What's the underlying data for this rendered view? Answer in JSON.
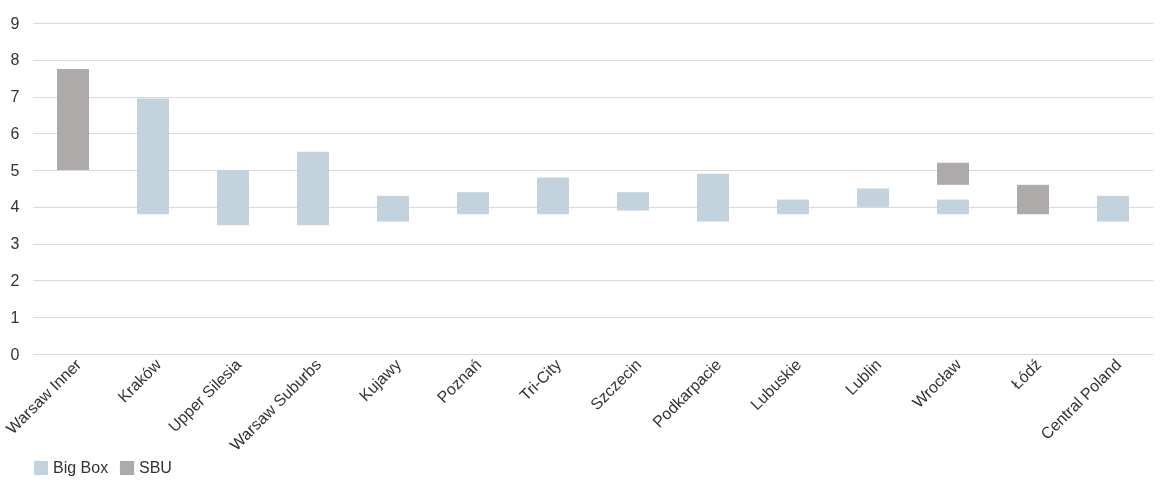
{
  "chart_data": {
    "type": "bar",
    "categories": [
      "Warsaw Inner",
      "Kraków",
      "Upper Silesia",
      "Warsaw Suburbs",
      "Kujawy",
      "Poznań",
      "Tri-City",
      "Szczecin",
      "Podkarpacie",
      "Lubuskie",
      "Lublin",
      "Wrocław",
      "Łódź",
      "Central Poland"
    ],
    "series": [
      {
        "name": "Big Box",
        "color": "#c2d3dd",
        "base": [
          null,
          3.8,
          3.5,
          3.5,
          3.6,
          3.8,
          3.8,
          3.9,
          3.6,
          3.8,
          4.0,
          3.8,
          null,
          3.6
        ],
        "values": [
          null,
          3.15,
          1.5,
          2.0,
          0.7,
          0.6,
          1.0,
          0.5,
          1.3,
          0.4,
          0.5,
          0.4,
          null,
          0.7
        ]
      },
      {
        "name": "SBU",
        "color": "#aeaaa9",
        "base": [
          5.0,
          null,
          null,
          null,
          null,
          null,
          null,
          null,
          null,
          null,
          null,
          4.6,
          3.8,
          null
        ],
        "values": [
          2.75,
          null,
          null,
          null,
          null,
          null,
          null,
          null,
          null,
          null,
          null,
          0.6,
          0.8,
          null
        ]
      }
    ],
    "ylim": [
      0,
      9
    ],
    "yticks": [
      0,
      1,
      2,
      3,
      4,
      5,
      6,
      7,
      8,
      9
    ],
    "grid": "y",
    "legend": "bottom"
  }
}
